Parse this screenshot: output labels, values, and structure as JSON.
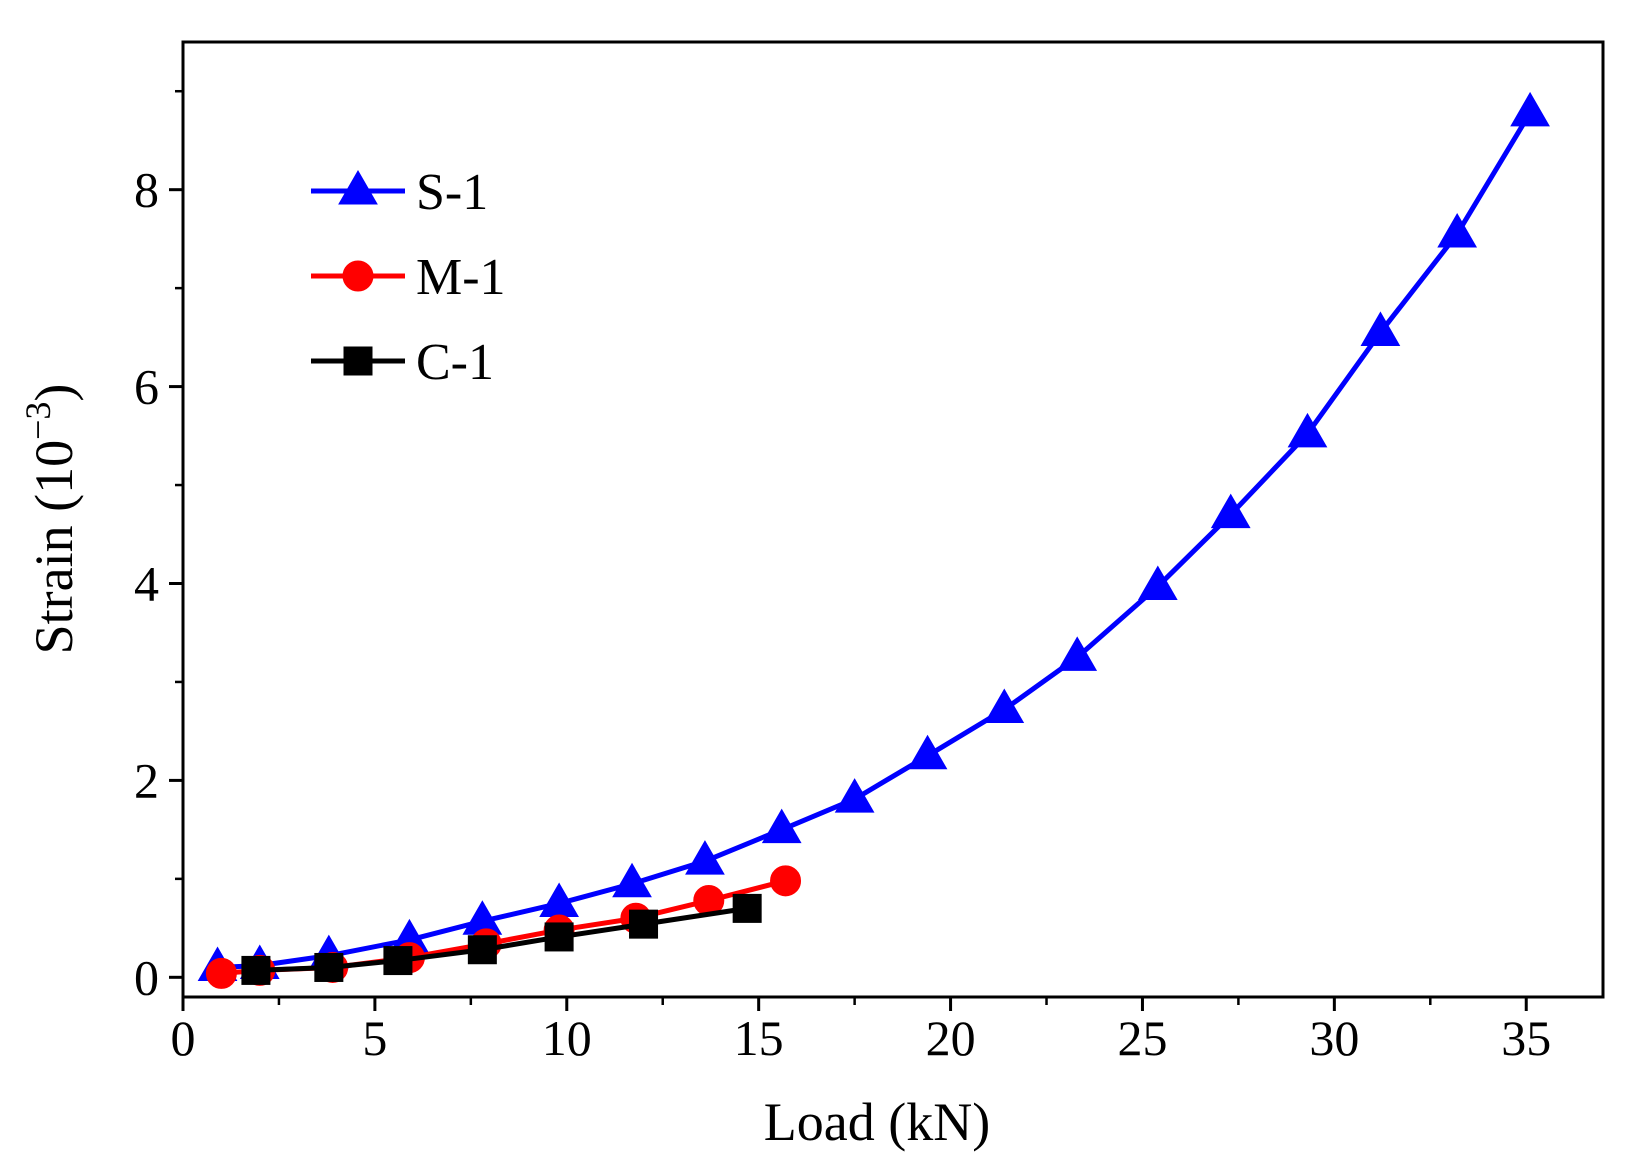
{
  "chart_data": {
    "type": "line",
    "title": "",
    "xlabel": "Load (kN)",
    "ylabel_main": "Strain (10",
    "ylabel_sup": "−3",
    "ylabel_close": ")",
    "xlim": [
      0,
      37
    ],
    "ylim": [
      -0.2,
      9.5
    ],
    "x_ticks": [
      0,
      5,
      10,
      15,
      20,
      25,
      30,
      35
    ],
    "x_tick_labels": [
      "0",
      "5",
      "10",
      "15",
      "20",
      "25",
      "30",
      "35"
    ],
    "y_ticks": [
      0,
      2,
      4,
      6,
      8
    ],
    "y_tick_labels": [
      "0",
      "2",
      "4",
      "6",
      "8"
    ],
    "grid": false,
    "legend_position": "top-left",
    "series": [
      {
        "name": "S-1",
        "color": "#0000ff",
        "marker": "triangle",
        "x": [
          0.9,
          2.0,
          3.8,
          5.9,
          7.8,
          9.8,
          11.7,
          13.6,
          15.6,
          17.5,
          19.4,
          21.4,
          23.3,
          25.4,
          27.3,
          29.3,
          31.2,
          33.2,
          35.1
        ],
        "y": [
          0.1,
          0.12,
          0.22,
          0.38,
          0.57,
          0.75,
          0.95,
          1.18,
          1.5,
          1.81,
          2.25,
          2.72,
          3.25,
          3.97,
          4.7,
          5.52,
          6.55,
          7.55,
          8.78
        ]
      },
      {
        "name": "M-1",
        "color": "#ff0000",
        "marker": "circle",
        "x": [
          1.0,
          2.0,
          3.9,
          5.9,
          7.9,
          9.8,
          11.8,
          13.7,
          15.7
        ],
        "y": [
          0.04,
          0.07,
          0.1,
          0.2,
          0.34,
          0.48,
          0.6,
          0.78,
          0.98
        ]
      },
      {
        "name": "C-1",
        "color": "#000000",
        "marker": "square",
        "x": [
          1.9,
          3.8,
          5.6,
          7.8,
          9.8,
          12.0,
          14.7
        ],
        "y": [
          0.07,
          0.1,
          0.17,
          0.28,
          0.41,
          0.54,
          0.7
        ]
      }
    ]
  }
}
